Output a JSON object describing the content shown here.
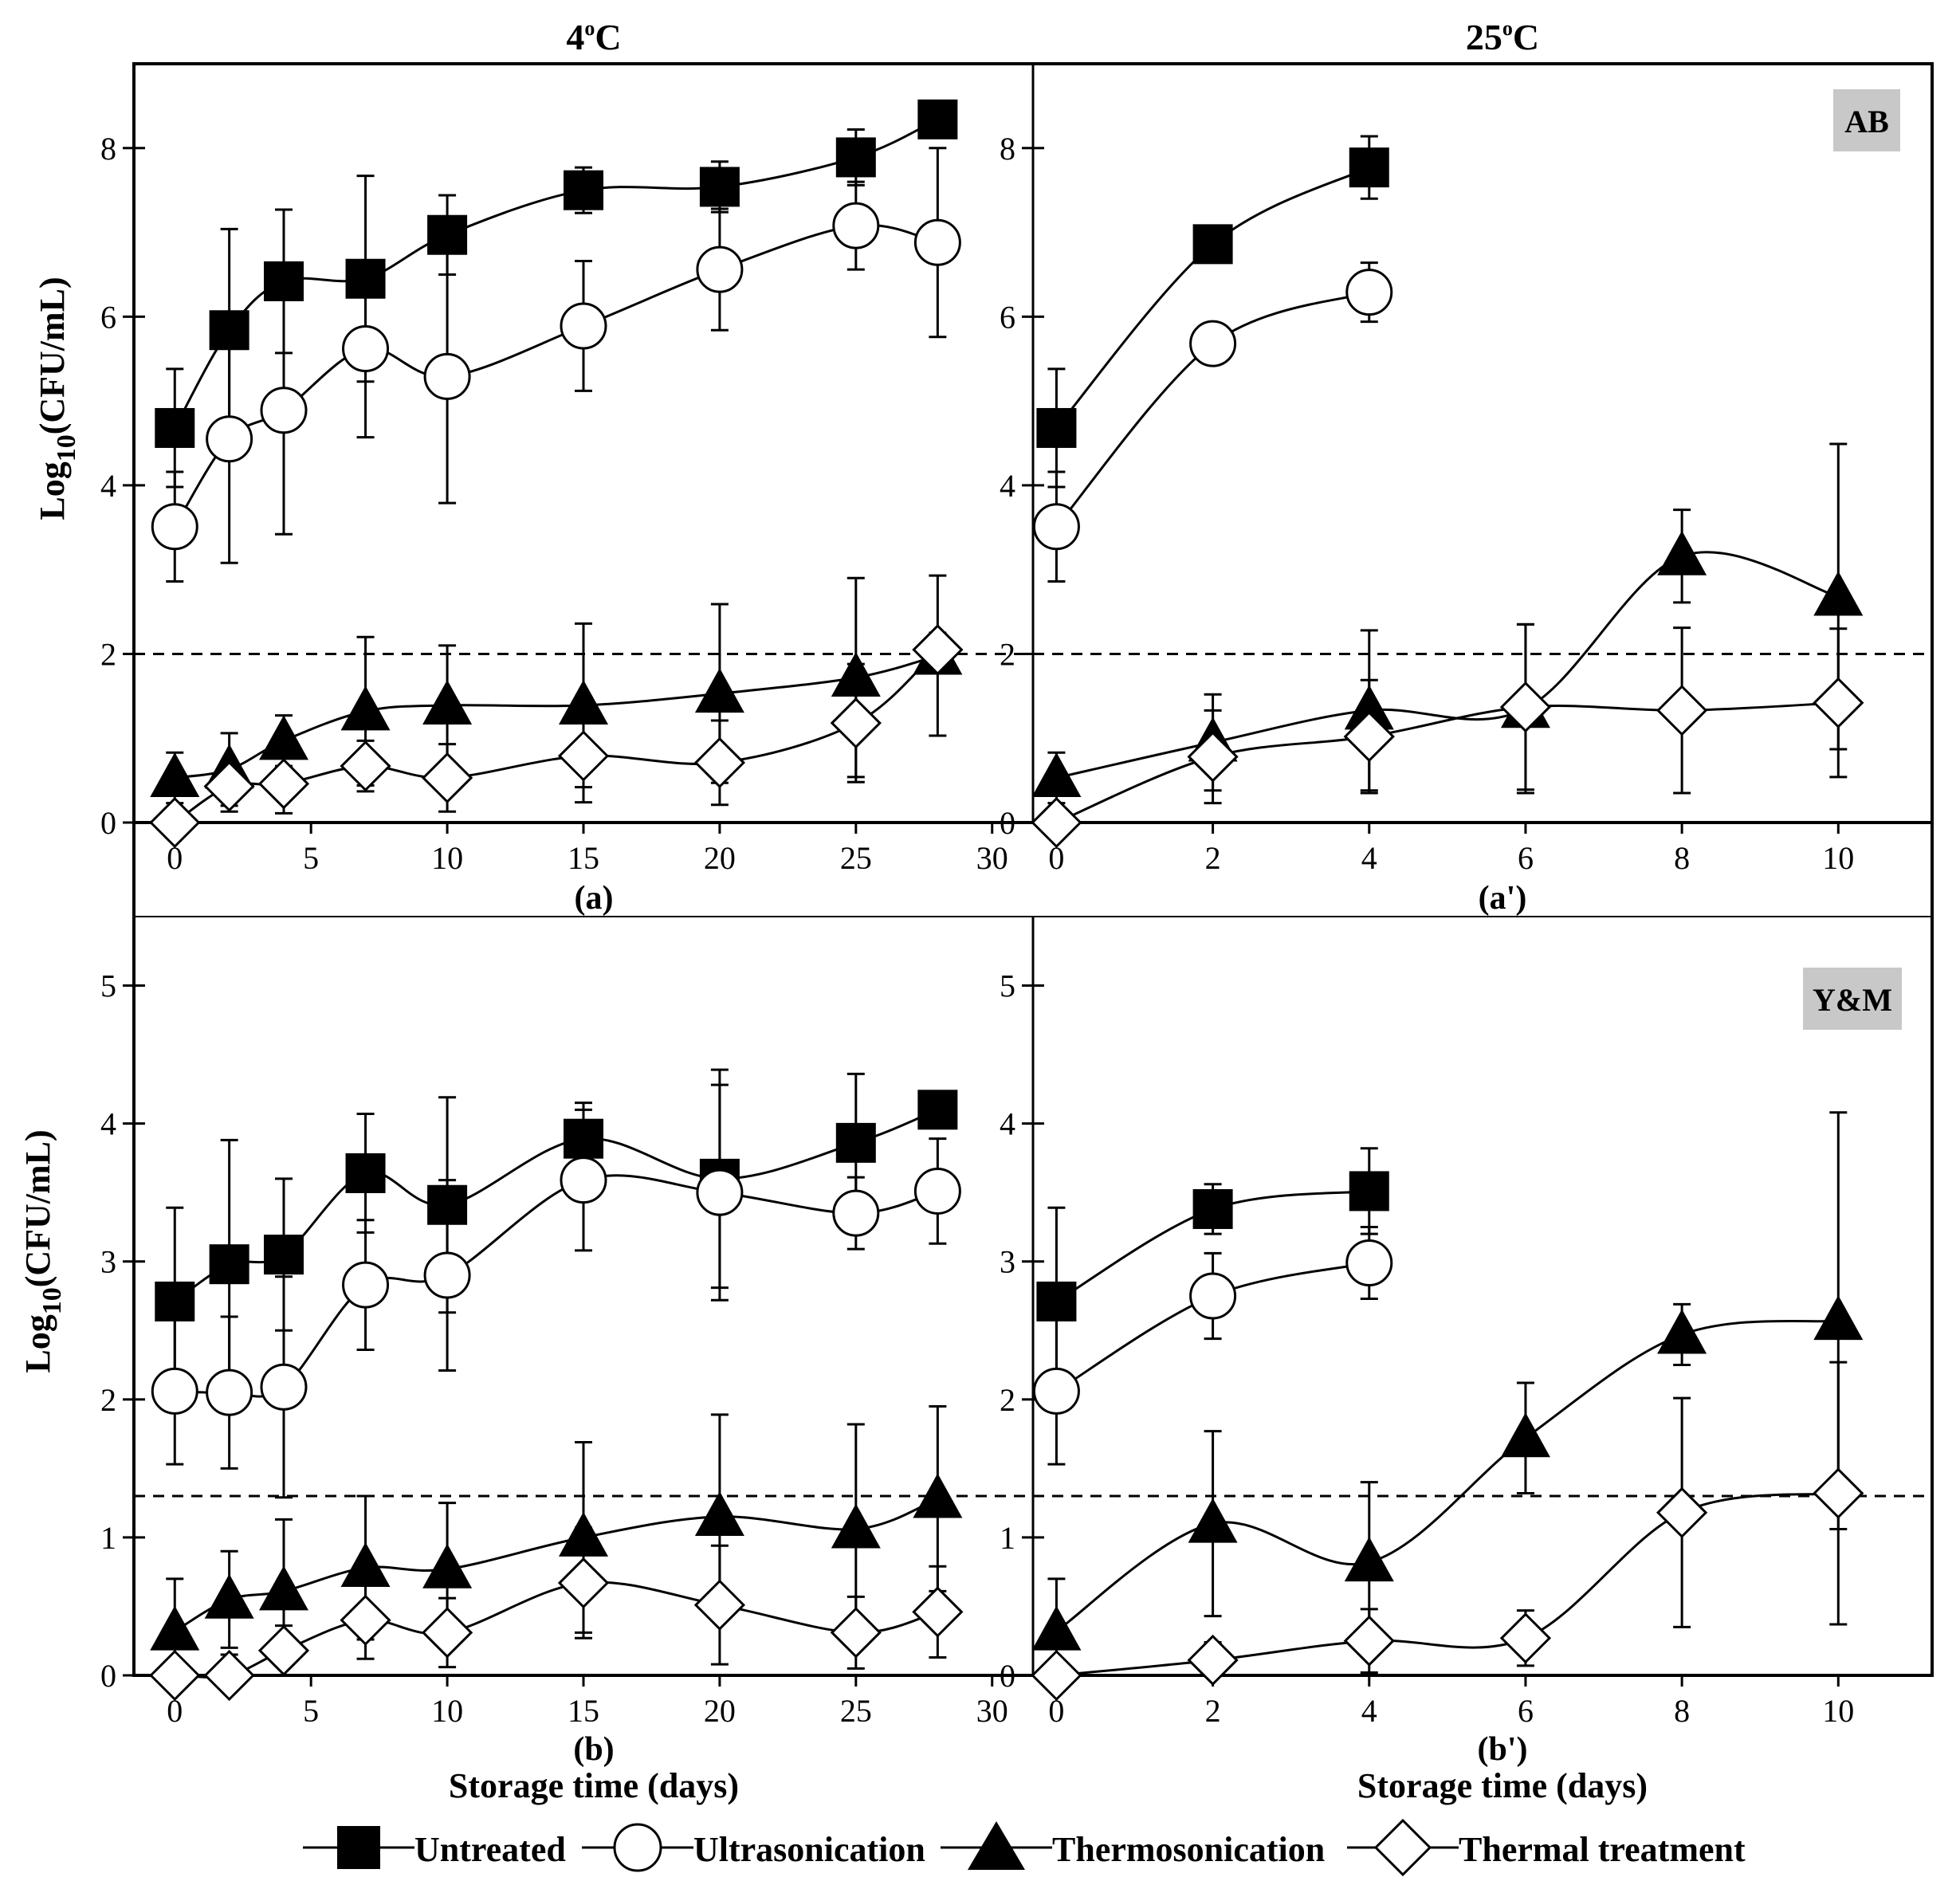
{
  "figure": {
    "ylabel_main": "Log",
    "ylabel_sub": "10",
    "ylabel_tail": "(CFU/mL)",
    "xlabel": "Storage time (days)",
    "col_titles": [
      {
        "num": "4",
        "deg": "o",
        "unit": "C"
      },
      {
        "num": "25",
        "deg": "o",
        "unit": "C"
      }
    ],
    "row_badges": [
      "AB",
      "Y&M"
    ],
    "panel_labels": [
      "(a)",
      "(a')",
      "(b)",
      "(b')"
    ]
  },
  "legend": [
    {
      "name": "Untreated",
      "marker": "filled-square"
    },
    {
      "name": "Ultrasonication",
      "marker": "open-circle"
    },
    {
      "name": "Thermosonication",
      "marker": "filled-triangle"
    },
    {
      "name": "Thermal treatment",
      "marker": "open-diamond"
    }
  ],
  "chart_data": [
    {
      "id": "a",
      "type": "line",
      "xlim": [
        -1.5,
        31.5
      ],
      "ylim": [
        0,
        9
      ],
      "xticks": [
        0,
        5,
        10,
        15,
        20,
        25,
        30
      ],
      "yticks": [
        0,
        2,
        4,
        6,
        8
      ],
      "threshold": 2,
      "series": [
        {
          "name": "Untreated",
          "x": [
            0,
            2,
            4,
            7,
            10,
            15,
            20,
            25,
            28
          ],
          "y": [
            4.68,
            5.84,
            6.42,
            6.45,
            6.97,
            7.5,
            7.54,
            7.89,
            8.34
          ],
          "err": [
            0.7,
            1.2,
            0.85,
            1.22,
            0.47,
            0.27,
            0.3,
            0.33,
            0.08
          ]
        },
        {
          "name": "Ultrasonication",
          "x": [
            0,
            2,
            4,
            7,
            10,
            15,
            20,
            25,
            28
          ],
          "y": [
            3.51,
            4.55,
            4.89,
            5.62,
            5.29,
            5.89,
            6.56,
            7.08,
            6.88
          ],
          "err": [
            0.65,
            1.47,
            1.47,
            1.05,
            1.5,
            0.77,
            0.72,
            0.52,
            1.12
          ]
        },
        {
          "name": "Thermosonication",
          "x": [
            0,
            2,
            4,
            7,
            10,
            15,
            20,
            25,
            28
          ],
          "y": [
            0.53,
            0.63,
            0.97,
            1.32,
            1.39,
            1.39,
            1.53,
            1.72,
            1.98
          ],
          "err": [
            0.3,
            0.43,
            0.3,
            0.88,
            0.71,
            0.97,
            1.06,
            1.18,
            0.95
          ]
        },
        {
          "name": "Thermal treatment",
          "x": [
            0,
            2,
            4,
            7,
            10,
            15,
            20,
            25,
            28
          ],
          "y": [
            0.0,
            0.43,
            0.46,
            0.67,
            0.53,
            0.79,
            0.71,
            1.18,
            2.05
          ],
          "err": [
            0.0,
            0.3,
            0.35,
            0.3,
            0.4,
            0.55,
            0.5,
            0.7,
            0.2
          ]
        }
      ]
    },
    {
      "id": "a'",
      "type": "line",
      "xlim": [
        -0.3,
        11.2
      ],
      "ylim": [
        0,
        9
      ],
      "xticks": [
        0,
        2,
        4,
        6,
        8,
        10
      ],
      "yticks": [
        0,
        2,
        4,
        6,
        8
      ],
      "threshold": 2,
      "series": [
        {
          "name": "Untreated",
          "x": [
            0,
            2,
            4
          ],
          "y": [
            4.68,
            6.86,
            7.77
          ],
          "err": [
            0.7,
            0.08,
            0.37
          ]
        },
        {
          "name": "Ultrasonication",
          "x": [
            0,
            2,
            4
          ],
          "y": [
            3.51,
            5.68,
            6.29
          ],
          "err": [
            0.65,
            0.1,
            0.35
          ]
        },
        {
          "name": "Thermosonication",
          "x": [
            0,
            2,
            4,
            6,
            8,
            10
          ],
          "y": [
            0.53,
            0.95,
            1.33,
            1.35,
            3.16,
            2.68
          ],
          "err": [
            0.3,
            0.57,
            0.95,
            1.0,
            0.55,
            1.81
          ]
        },
        {
          "name": "Thermal treatment",
          "x": [
            0,
            2,
            4,
            6,
            8,
            10
          ],
          "y": [
            0.0,
            0.78,
            1.02,
            1.37,
            1.33,
            1.42
          ],
          "err": [
            0.0,
            0.55,
            0.67,
            0.98,
            0.98,
            0.88
          ]
        }
      ]
    },
    {
      "id": "b",
      "type": "line",
      "xlim": [
        -1.5,
        31.5
      ],
      "ylim": [
        0,
        5.5
      ],
      "xticks": [
        0,
        5,
        10,
        15,
        20,
        25,
        30
      ],
      "yticks": [
        0,
        1,
        2,
        3,
        4,
        5
      ],
      "threshold": 1.3,
      "series": [
        {
          "name": "Untreated",
          "x": [
            0,
            2,
            4,
            7,
            10,
            15,
            20,
            25,
            28
          ],
          "y": [
            2.71,
            2.98,
            3.05,
            3.64,
            3.41,
            3.89,
            3.6,
            3.86,
            4.1
          ],
          "err": [
            0.68,
            0.9,
            0.55,
            0.43,
            0.78,
            0.26,
            0.79,
            0.5,
            0.11
          ]
        },
        {
          "name": "Ultrasonication",
          "x": [
            0,
            2,
            4,
            7,
            10,
            15,
            20,
            25,
            28
          ],
          "y": [
            2.06,
            2.05,
            2.09,
            2.83,
            2.9,
            3.59,
            3.5,
            3.35,
            3.51
          ],
          "err": [
            0.53,
            0.55,
            0.8,
            0.47,
            0.69,
            0.51,
            0.78,
            0.26,
            0.38
          ]
        },
        {
          "name": "Thermosonication",
          "x": [
            0,
            2,
            4,
            7,
            10,
            15,
            20,
            25,
            28
          ],
          "y": [
            0.32,
            0.55,
            0.61,
            0.78,
            0.77,
            1.0,
            1.15,
            1.06,
            1.28
          ],
          "err": [
            0.38,
            0.35,
            0.52,
            0.52,
            0.48,
            0.69,
            0.74,
            0.76,
            0.67
          ]
        },
        {
          "name": "Thermal treatment",
          "x": [
            0,
            2,
            4,
            7,
            10,
            15,
            20,
            25,
            28
          ],
          "y": [
            0.0,
            0.0,
            0.18,
            0.4,
            0.31,
            0.67,
            0.51,
            0.31,
            0.46
          ],
          "err": [
            0.0,
            0.15,
            0.18,
            0.28,
            0.25,
            0.4,
            0.43,
            0.26,
            0.33
          ]
        }
      ]
    },
    {
      "id": "b'",
      "type": "line",
      "xlim": [
        -0.3,
        11.2
      ],
      "ylim": [
        0,
        5.5
      ],
      "xticks": [
        0,
        2,
        4,
        6,
        8,
        10
      ],
      "yticks": [
        0,
        1,
        2,
        3,
        4,
        5
      ],
      "threshold": 1.3,
      "series": [
        {
          "name": "Untreated",
          "x": [
            0,
            2,
            4
          ],
          "y": [
            2.71,
            3.38,
            3.51
          ],
          "err": [
            0.68,
            0.18,
            0.31
          ]
        },
        {
          "name": "Ultrasonication",
          "x": [
            0,
            2,
            4
          ],
          "y": [
            2.06,
            2.75,
            2.99
          ],
          "err": [
            0.53,
            0.31,
            0.26
          ]
        },
        {
          "name": "Thermosonication",
          "x": [
            0,
            2,
            4,
            6,
            8,
            10
          ],
          "y": [
            0.32,
            1.1,
            0.82,
            1.72,
            2.47,
            2.57
          ],
          "err": [
            0.38,
            0.67,
            0.58,
            0.4,
            0.22,
            1.51
          ]
        },
        {
          "name": "Thermal treatment",
          "x": [
            0,
            2,
            4,
            6,
            8,
            10
          ],
          "y": [
            0.0,
            0.11,
            0.25,
            0.27,
            1.18,
            1.32
          ],
          "err": [
            0.0,
            0.13,
            0.23,
            0.2,
            0.83,
            0.95
          ]
        }
      ]
    }
  ]
}
